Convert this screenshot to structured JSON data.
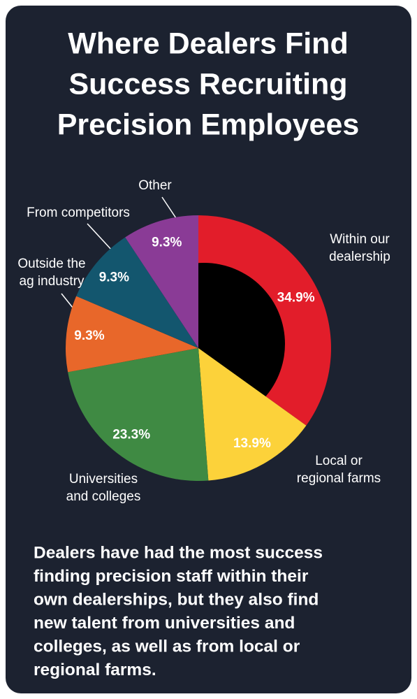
{
  "chart_data": {
    "type": "donut",
    "title": [
      "Where Dealers Find",
      "Success Recruiting",
      "Precision Employees"
    ],
    "categories": [
      [
        "Within our",
        "dealership"
      ],
      [
        "Local or",
        "regional farms"
      ],
      [
        "Universities",
        "and colleges"
      ],
      [
        "Outside the",
        "ag industry"
      ],
      [
        "From competitors"
      ],
      [
        "Other"
      ]
    ],
    "values": [
      34.9,
      13.9,
      23.3,
      9.3,
      9.3,
      9.3
    ],
    "value_labels": [
      "34.9%",
      "13.9%",
      "23.3%",
      "9.3%",
      "9.3%",
      "9.3%"
    ],
    "colors": [
      "#e21d2a",
      "#fcd23a",
      "#3f8a43",
      "#e8672a",
      "#13566e",
      "#8a3b96"
    ],
    "annotation": [
      "Dealers have had the most success",
      "finding precision staff within their",
      "own dealerships, but they also find",
      "new talent from universities and",
      "colleges, as well as from local or",
      "regional farms."
    ]
  }
}
